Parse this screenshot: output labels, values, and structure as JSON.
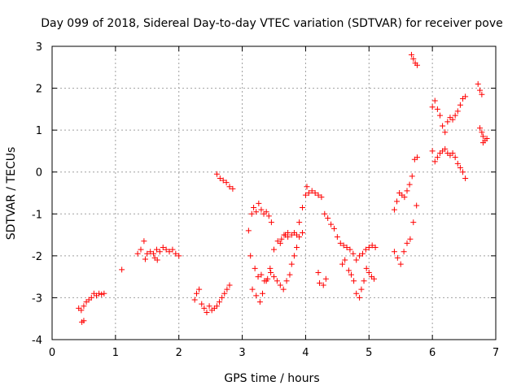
{
  "chart_data": {
    "type": "scatter",
    "title": "Day 099 of 2018, Sidereal Day-to-day VTEC variation (SDTVAR) for receiver pove",
    "xlabel": "GPS time / hours",
    "ylabel": "SDTVAR / TECUs",
    "xlim": [
      0,
      7
    ],
    "ylim": [
      -4,
      3
    ],
    "grid": true,
    "marker": "+",
    "xticks": [
      0,
      1,
      2,
      3,
      4,
      5,
      6,
      7
    ],
    "yticks": [
      -4,
      -3,
      -2,
      -1,
      0,
      1,
      2,
      3
    ],
    "series": [
      {
        "name": "SDTVAR",
        "color": "#ff0000",
        "x": [
          0.42,
          0.46,
          0.5,
          0.54,
          0.58,
          0.62,
          0.66,
          0.7,
          0.74,
          0.78,
          0.82,
          0.47,
          0.5,
          1.1,
          1.35,
          1.4,
          1.45,
          1.5,
          1.55,
          1.6,
          1.65,
          1.7,
          1.75,
          1.8,
          1.85,
          1.9,
          1.95,
          2.0,
          1.62,
          1.66,
          1.47,
          2.25,
          2.28,
          2.32,
          2.36,
          2.4,
          2.44,
          2.48,
          2.52,
          2.56,
          2.6,
          2.64,
          2.68,
          2.72,
          2.76,
          2.8,
          2.6,
          2.65,
          2.7,
          2.75,
          2.8,
          2.85,
          3.1,
          3.15,
          3.18,
          3.22,
          3.26,
          3.3,
          3.34,
          3.38,
          3.42,
          3.46,
          3.13,
          3.2,
          3.25,
          3.3,
          3.35,
          3.4,
          3.45,
          3.5,
          3.55,
          3.6,
          3.65,
          3.7,
          3.75,
          3.78,
          3.82,
          3.86,
          3.9,
          3.95,
          3.62,
          3.68,
          3.72,
          3.16,
          3.22,
          3.28,
          3.32,
          3.38,
          3.44,
          3.5,
          3.56,
          3.6,
          3.66,
          3.72,
          3.78,
          3.82,
          3.86,
          3.9,
          3.95,
          4.0,
          4.02,
          4.05,
          4.1,
          4.15,
          4.2,
          4.25,
          4.3,
          4.35,
          4.4,
          4.45,
          4.5,
          4.55,
          4.6,
          4.65,
          4.7,
          4.75,
          4.8,
          4.85,
          4.9,
          4.95,
          5.0,
          5.05,
          5.1,
          4.2,
          4.22,
          4.28,
          4.32,
          4.58,
          4.62,
          4.68,
          4.72,
          4.76,
          4.8,
          4.85,
          4.88,
          4.92,
          4.96,
          5.0,
          5.04,
          5.08,
          5.4,
          5.44,
          5.48,
          5.52,
          5.56,
          5.6,
          5.64,
          5.68,
          5.72,
          5.76,
          5.4,
          5.45,
          5.5,
          5.55,
          5.6,
          5.65,
          5.7,
          5.75,
          5.67,
          5.7,
          5.73,
          5.76,
          6.0,
          6.04,
          6.08,
          6.12,
          6.16,
          6.2,
          6.24,
          6.28,
          6.32,
          6.36,
          6.4,
          6.44,
          6.48,
          6.52,
          6.0,
          6.04,
          6.08,
          6.12,
          6.16,
          6.2,
          6.24,
          6.28,
          6.32,
          6.36,
          6.4,
          6.44,
          6.48,
          6.52,
          6.75,
          6.78,
          6.8,
          6.72,
          6.75,
          6.78,
          6.8,
          6.83,
          6.86
        ],
        "y": [
          -3.25,
          -3.3,
          -3.2,
          -3.1,
          -3.05,
          -3.0,
          -2.9,
          -2.95,
          -2.9,
          -2.92,
          -2.9,
          -3.58,
          -3.55,
          -2.33,
          -1.95,
          -1.85,
          -1.65,
          -1.95,
          -1.9,
          -1.95,
          -1.85,
          -1.9,
          -1.8,
          -1.85,
          -1.9,
          -1.85,
          -1.95,
          -2.0,
          -2.05,
          -2.1,
          -2.08,
          -3.05,
          -2.9,
          -2.8,
          -3.15,
          -3.25,
          -3.35,
          -3.2,
          -3.3,
          -3.25,
          -3.2,
          -3.1,
          -3.0,
          -2.9,
          -2.8,
          -2.7,
          -0.05,
          -0.15,
          -0.2,
          -0.25,
          -0.35,
          -0.4,
          -1.4,
          -1.0,
          -0.85,
          -0.95,
          -0.75,
          -0.9,
          -1.0,
          -0.95,
          -1.05,
          -1.2,
          -2.0,
          -2.3,
          -2.5,
          -2.45,
          -2.6,
          -2.55,
          -2.4,
          -2.5,
          -2.6,
          -2.7,
          -2.8,
          -2.6,
          -2.45,
          -2.2,
          -2.0,
          -1.8,
          -1.55,
          -1.45,
          -1.6,
          -1.5,
          -1.55,
          -2.8,
          -2.95,
          -3.1,
          -2.9,
          -2.6,
          -2.3,
          -1.85,
          -1.65,
          -1.7,
          -1.5,
          -1.45,
          -1.5,
          -1.45,
          -1.5,
          -1.2,
          -0.85,
          -0.55,
          -0.35,
          -0.5,
          -0.45,
          -0.5,
          -0.55,
          -0.6,
          -1.0,
          -1.1,
          -1.25,
          -1.35,
          -1.55,
          -1.7,
          -1.75,
          -1.8,
          -1.85,
          -1.95,
          -2.1,
          -2.0,
          -1.95,
          -1.85,
          -1.8,
          -1.75,
          -1.8,
          -2.4,
          -2.65,
          -2.7,
          -2.55,
          -2.2,
          -2.1,
          -2.35,
          -2.45,
          -2.6,
          -2.9,
          -3.0,
          -2.8,
          -2.6,
          -2.3,
          -2.4,
          -2.5,
          -2.55,
          -0.9,
          -0.7,
          -0.5,
          -0.55,
          -0.6,
          -0.45,
          -0.3,
          -0.1,
          0.3,
          0.35,
          -1.9,
          -2.05,
          -2.2,
          -1.9,
          -1.7,
          -1.6,
          -1.2,
          -0.8,
          2.8,
          2.7,
          2.6,
          2.55,
          1.55,
          1.7,
          1.5,
          1.35,
          1.1,
          0.95,
          1.2,
          1.3,
          1.25,
          1.35,
          1.45,
          1.6,
          1.75,
          1.8,
          0.5,
          0.25,
          0.35,
          0.45,
          0.5,
          0.55,
          0.45,
          0.4,
          0.45,
          0.35,
          0.2,
          0.1,
          0.0,
          -0.15,
          1.05,
          0.95,
          0.85,
          2.1,
          1.95,
          1.85,
          0.7,
          0.75,
          0.8
        ]
      }
    ]
  }
}
